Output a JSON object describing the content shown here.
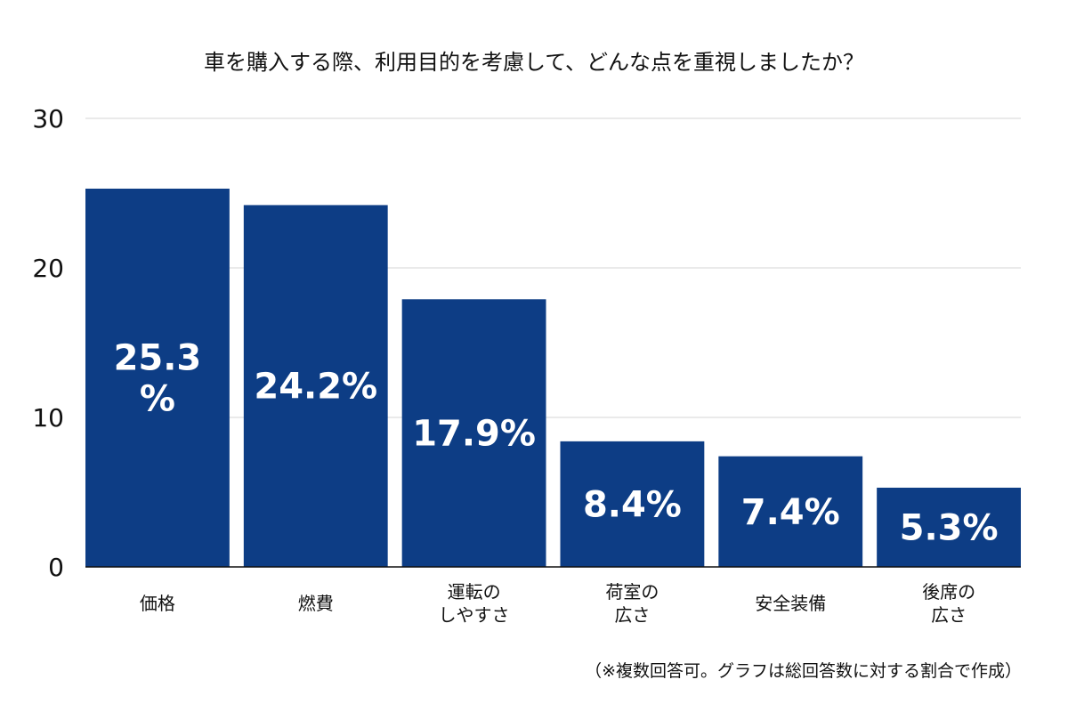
{
  "chart_data": {
    "type": "bar",
    "title": "車を購入する際、利用目的を考慮して、どんな点を重視しましたか？",
    "categories": [
      "価格",
      "燃費",
      "運転の\nしやすさ",
      "荷室の\n広さ",
      "安全装備",
      "後席の\n広さ"
    ],
    "values": [
      25.3,
      24.2,
      17.9,
      8.4,
      7.4,
      5.3
    ],
    "value_labels": [
      "25.3\n%",
      "24.2%",
      "17.9%",
      "8.4%",
      "7.4%",
      "5.3%"
    ],
    "ylim": [
      0,
      30
    ],
    "yticks": [
      0,
      10,
      20,
      30
    ],
    "xlabel": "",
    "ylabel": "",
    "grid": true,
    "bar_color": "#0d3d85",
    "note": "（※複数回答可。グラフは総回答数に対する割合で作成）"
  }
}
